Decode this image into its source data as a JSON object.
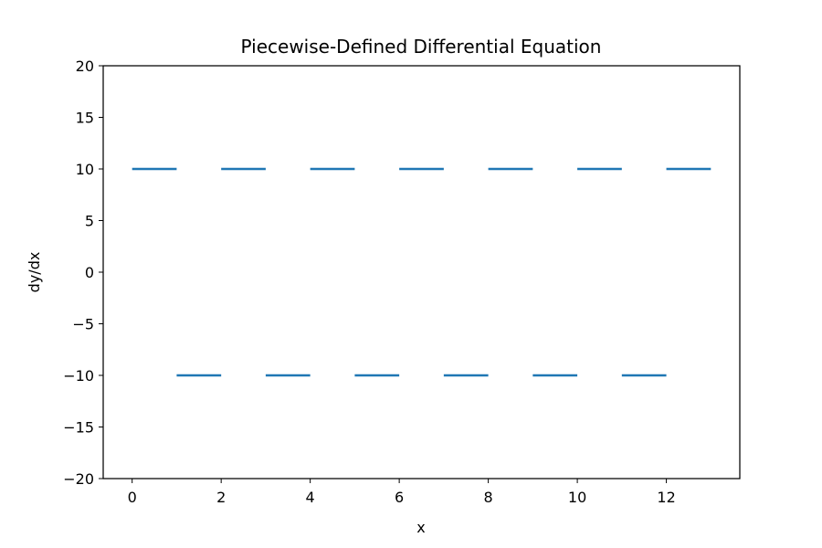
{
  "chart_data": {
    "type": "line",
    "title": "Piecewise-Defined Differential Equation",
    "xlabel": "x",
    "ylabel": "dy/dx",
    "xlim": [
      -0.65,
      13.65
    ],
    "ylim": [
      -20,
      20
    ],
    "xticks": [
      0,
      2,
      4,
      6,
      8,
      10,
      12
    ],
    "yticks": [
      -20,
      -15,
      -10,
      -5,
      0,
      5,
      10,
      15,
      20
    ],
    "grid": false,
    "legend": "none",
    "color": "#1f77b4",
    "segments": [
      {
        "x": [
          0,
          1
        ],
        "y": 10
      },
      {
        "x": [
          1,
          2
        ],
        "y": -10
      },
      {
        "x": [
          2,
          3
        ],
        "y": 10
      },
      {
        "x": [
          3,
          4
        ],
        "y": -10
      },
      {
        "x": [
          4,
          5
        ],
        "y": 10
      },
      {
        "x": [
          5,
          6
        ],
        "y": -10
      },
      {
        "x": [
          6,
          7
        ],
        "y": 10
      },
      {
        "x": [
          7,
          8
        ],
        "y": -10
      },
      {
        "x": [
          8,
          9
        ],
        "y": 10
      },
      {
        "x": [
          9,
          10
        ],
        "y": -10
      },
      {
        "x": [
          10,
          11
        ],
        "y": 10
      },
      {
        "x": [
          11,
          12
        ],
        "y": -10
      },
      {
        "x": [
          12,
          13
        ],
        "y": 10
      }
    ]
  }
}
